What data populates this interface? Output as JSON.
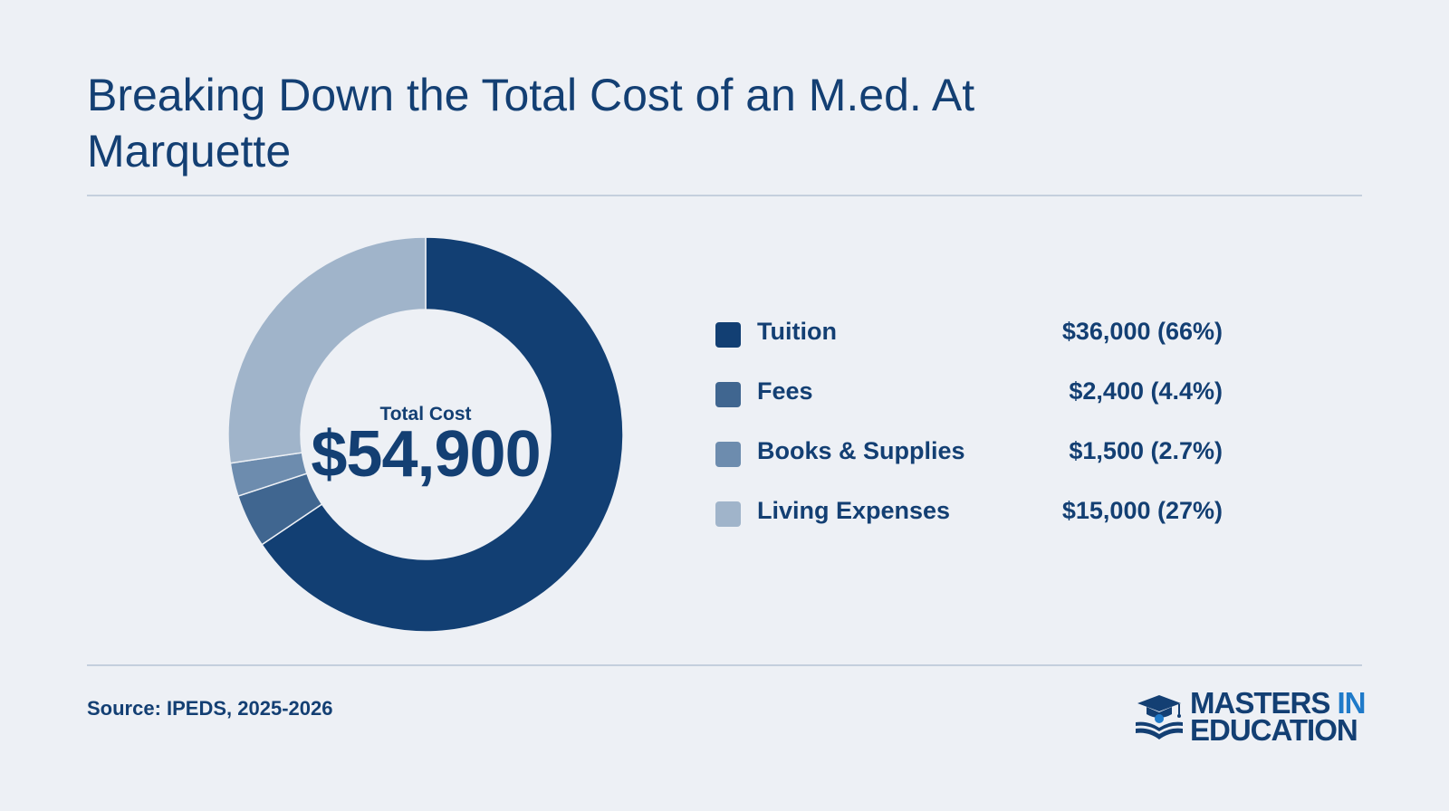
{
  "header": {
    "title": "Breaking Down the Total Cost of an M.ed. At Marquette"
  },
  "center": {
    "label": "Total Cost",
    "value": "$54,900"
  },
  "chart_data": {
    "type": "donut",
    "title": "Breaking Down the Total Cost of an M.ed. At Marquette",
    "total": 54900,
    "total_label": "$54,900",
    "categories": [
      "Tuition",
      "Fees",
      "Books & Supplies",
      "Living Expenses"
    ],
    "values": [
      36000,
      2400,
      1500,
      15000
    ],
    "percent_labels": [
      "66%",
      "4.4%",
      "2.7%",
      "27%"
    ],
    "colors": [
      "#123f73",
      "#406690",
      "#6d8cae",
      "#a0b4ca"
    ],
    "legend_placement": "right"
  },
  "legend": [
    {
      "name": "Tuition",
      "value": "$36,000 (66%)"
    },
    {
      "name": "Fees",
      "value": "$2,400 (4.4%)"
    },
    {
      "name": "Books & Supplies",
      "value": "$1,500 (2.7%)"
    },
    {
      "name": "Living Expenses",
      "value": "$15,000 (27%)"
    }
  ],
  "footer": {
    "source": "Source: IPEDS, 2025-2026"
  },
  "logo": {
    "line1_word1": "MASTERS",
    "line1_word2": "IN",
    "line2": "EDUCATION",
    "accent_color": "#1f7ac9"
  }
}
